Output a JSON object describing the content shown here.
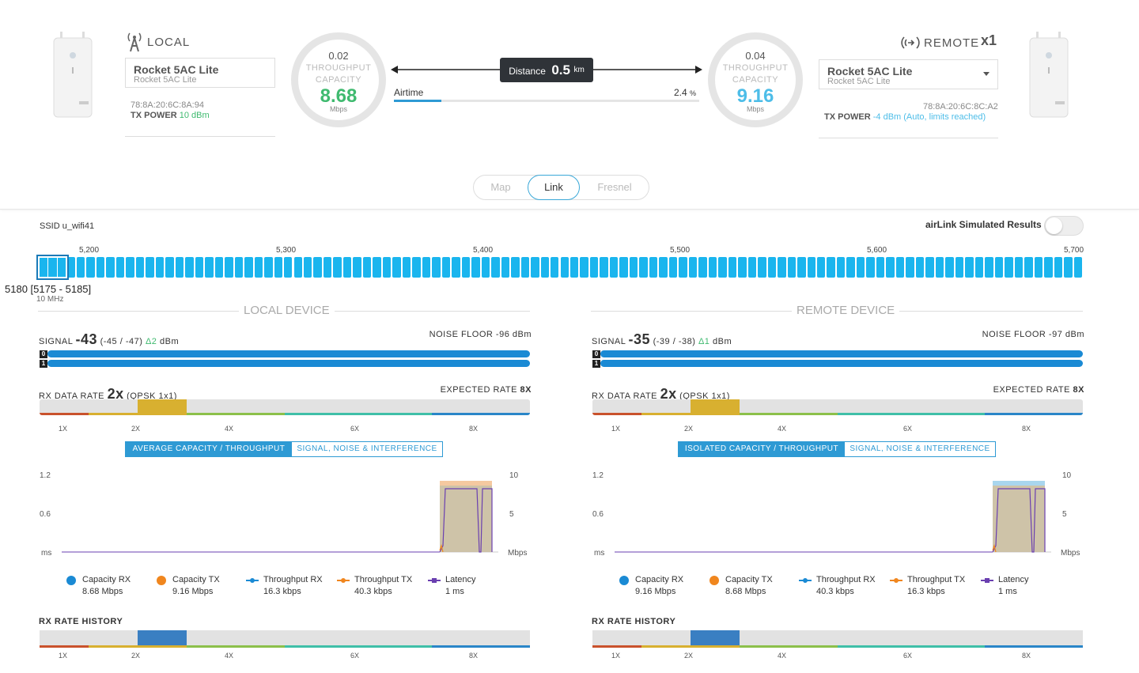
{
  "local": {
    "title": "LOCAL",
    "device_name": "Rocket 5AC Lite",
    "device_model": "Rocket 5AC Lite",
    "mac": "78:8A:20:6C:8A:94",
    "tx_power_label": "TX POWER",
    "tx_power_value": "10 dBm",
    "gauge": {
      "throughput": "0.02",
      "l1": "THROUGHPUT",
      "l2": "CAPACITY",
      "capacity": "8.68",
      "unit": "Mbps"
    }
  },
  "remote": {
    "title": "REMOTE",
    "count": "x1",
    "device_name": "Rocket 5AC Lite",
    "device_model": "Rocket 5AC Lite",
    "mac": "78:8A:20:6C:8C:A2",
    "tx_power_label": "TX POWER",
    "tx_power_value": "-4 dBm (Auto, limits reached)",
    "gauge": {
      "throughput": "0.04",
      "l1": "THROUGHPUT",
      "l2": "CAPACITY",
      "capacity": "9.16",
      "unit": "Mbps"
    }
  },
  "link": {
    "distance_label": "Distance",
    "distance_value": "0.5",
    "distance_unit": "km",
    "airtime_label": "Airtime",
    "airtime_value": "2.4",
    "airtime_unit": "%",
    "airtime_fraction": 0.024
  },
  "tabs": [
    "Map",
    "Link",
    "Fresnel"
  ],
  "active_tab": "Link",
  "ssid": "SSID u_wifi41",
  "airlink_toggle_label": "airLink Simulated Results",
  "airlink_toggle_on": false,
  "freq": {
    "ticks": [
      "5,200",
      "5,300",
      "5,400",
      "5,500",
      "5,600",
      "5,700"
    ],
    "selected": "5180 [5175 - 5185]",
    "width": "10 MHz"
  },
  "labels": {
    "signal": "SIGNAL",
    "noise_floor": "NOISE FLOOR",
    "rx_data_rate": "RX DATA RATE",
    "expected_rate": "EXPECTED RATE",
    "rx_rate_history": "RX RATE HISTORY",
    "rate_ticks": [
      "1X",
      "2X",
      "4X",
      "6X",
      "8X"
    ],
    "chart_left_ticks": [
      "1.2",
      "0.6",
      "ms"
    ],
    "chart_right_ticks": [
      "10",
      "5",
      "Mbps"
    ]
  },
  "local_panel": {
    "section_title": "LOCAL DEVICE",
    "signal_value": "-43",
    "signal_detail": "(-45 / -47)",
    "signal_delta": "Δ2",
    "signal_unit": "dBm",
    "noise_value": "-96 dBm",
    "chains": [
      "0",
      "1"
    ],
    "rx_rate": "2x",
    "rx_mod": "(QPSK 1x1)",
    "expected_rate": "8X",
    "btn_a": "AVERAGE CAPACITY / THROUGHPUT",
    "btn_b": "SIGNAL, NOISE & INTERFERENCE",
    "legend": [
      {
        "name": "Capacity RX",
        "value": "8.68 Mbps",
        "color": "#1a8ad4",
        "shape": "dot"
      },
      {
        "name": "Capacity TX",
        "value": "9.16 Mbps",
        "color": "#f0861e",
        "shape": "dot"
      },
      {
        "name": "Throughput RX",
        "value": "16.3 kbps",
        "color": "#1a8ad4",
        "shape": "line"
      },
      {
        "name": "Throughput TX",
        "value": "40.3 kbps",
        "color": "#f0861e",
        "shape": "line"
      },
      {
        "name": "Latency",
        "value": "1 ms",
        "color": "#6a3fb0",
        "shape": "square"
      }
    ]
  },
  "remote_panel": {
    "section_title": "REMOTE DEVICE",
    "signal_value": "-35",
    "signal_detail": "(-39 / -38)",
    "signal_delta": "Δ1",
    "signal_unit": "dBm",
    "noise_value": "-97 dBm",
    "chains": [
      "0",
      "1"
    ],
    "rx_rate": "2x",
    "rx_mod": "(QPSK 1x1)",
    "expected_rate": "8X",
    "btn_a": "ISOLATED CAPACITY / THROUGHPUT",
    "btn_b": "SIGNAL, NOISE & INTERFERENCE",
    "legend": [
      {
        "name": "Capacity RX",
        "value": "9.16 Mbps",
        "color": "#1a8ad4",
        "shape": "dot"
      },
      {
        "name": "Capacity TX",
        "value": "8.68 Mbps",
        "color": "#f0861e",
        "shape": "dot"
      },
      {
        "name": "Throughput RX",
        "value": "40.3 kbps",
        "color": "#1a8ad4",
        "shape": "line"
      },
      {
        "name": "Throughput TX",
        "value": "16.3 kbps",
        "color": "#f0861e",
        "shape": "line"
      },
      {
        "name": "Latency",
        "value": "1 ms",
        "color": "#6a3fb0",
        "shape": "square"
      }
    ]
  },
  "colors": {
    "accent": "#2e9ad4",
    "local_capacity": "#3fba6f",
    "remote_capacity": "#4dbde8",
    "channel": "#1ab5ee",
    "rate_highlight": "#d8b030",
    "history_highlight": "#3a7fc2",
    "rate_segments": [
      "#c9522c",
      "#d8b030",
      "#8cc04a",
      "#3fbfa8",
      "#2a86c8"
    ]
  }
}
